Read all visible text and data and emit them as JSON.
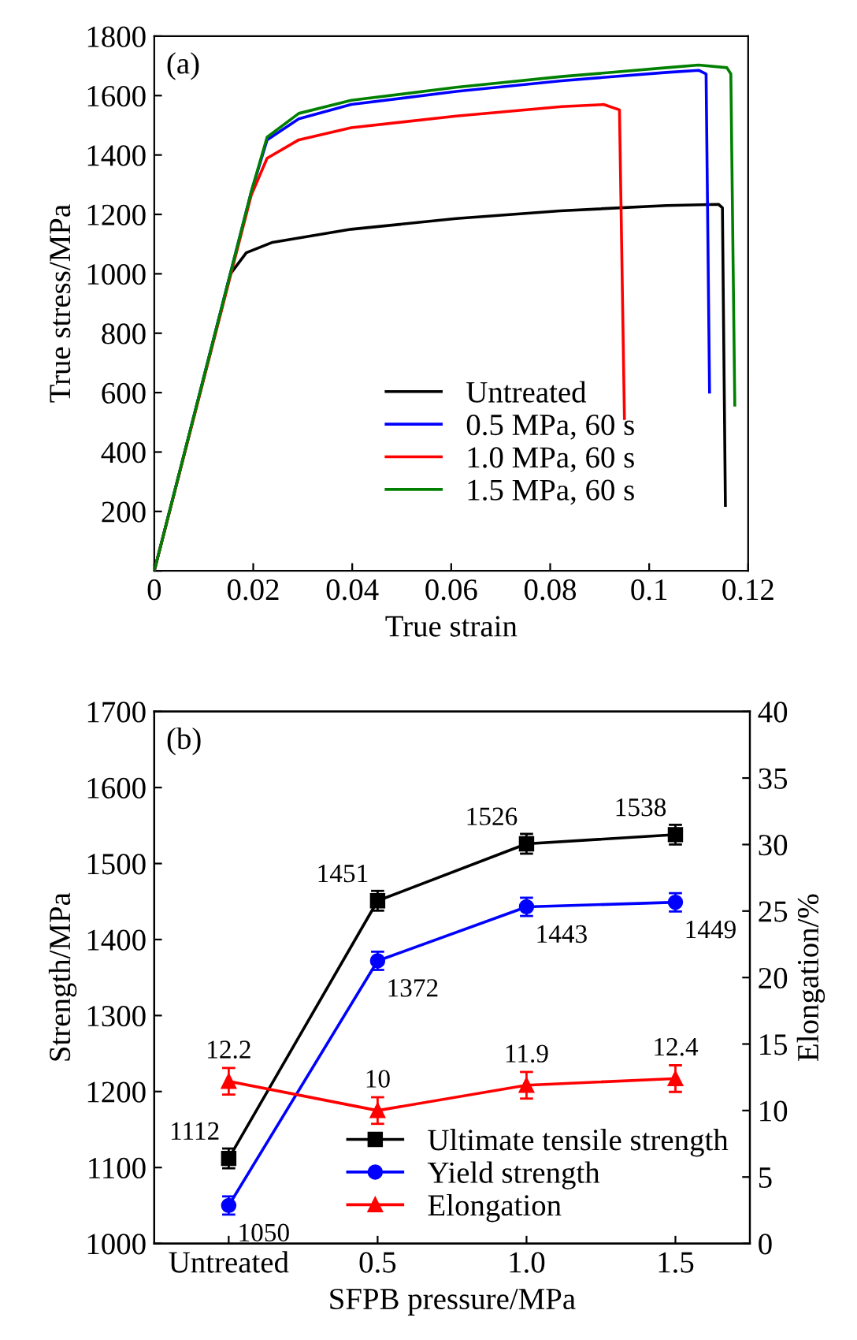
{
  "chart_data": [
    {
      "type": "line",
      "title": "(a)",
      "xlabel": "True strain",
      "ylabel": "True stress/MPa",
      "xlim": [
        0,
        0.12
      ],
      "ylim": [
        0,
        1800
      ],
      "xticks": [
        {
          "value": 0,
          "label": "0"
        },
        0.02,
        0.04,
        0.06,
        0.08,
        0.1,
        0.12
      ],
      "yticks": [
        {
          "value": 0,
          "label": null
        },
        200,
        400,
        600,
        800,
        1000,
        1200,
        1400,
        1600,
        1800
      ],
      "legend": "bottom",
      "grid": false,
      "marker": "none",
      "line_style": "solid",
      "series": [
        {
          "name": "Untreated",
          "color": "#000000",
          "x": [
            0,
            0.0154,
            0.0186,
            0.0239,
            0.0398,
            0.061,
            0.082,
            0.1035,
            0.114,
            0.1148,
            0.1154
          ],
          "values": [
            0,
            1000,
            1071,
            1106,
            1150,
            1186,
            1212,
            1230,
            1234,
            1222,
            220
          ]
        },
        {
          "name": "0.5 MPa, 60 s",
          "color": "#0000ff",
          "x": [
            0,
            0.0196,
            0.0228,
            0.0292,
            0.0398,
            0.061,
            0.0823,
            0.1035,
            0.11,
            0.1115,
            0.1122
          ],
          "values": [
            0,
            1276,
            1451,
            1522,
            1570,
            1614,
            1650,
            1678,
            1685,
            1673,
            602
          ]
        },
        {
          "name": "1.0 MPa, 60 s",
          "color": "#ff0000",
          "x": [
            0,
            0.0196,
            0.0228,
            0.0292,
            0.0398,
            0.061,
            0.0823,
            0.0908,
            0.094,
            0.095
          ],
          "values": [
            0,
            1265,
            1389,
            1451,
            1492,
            1531,
            1563,
            1570,
            1552,
            513
          ]
        },
        {
          "name": "1.5 MPa, 60 s",
          "color": "#008000",
          "x": [
            0,
            0.0196,
            0.0228,
            0.0292,
            0.0398,
            0.061,
            0.0823,
            0.1035,
            0.11,
            0.1157,
            0.1165,
            0.1173
          ],
          "values": [
            0,
            1276,
            1460,
            1540,
            1584,
            1628,
            1664,
            1694,
            1703,
            1694,
            1673,
            558
          ]
        }
      ]
    },
    {
      "type": "line",
      "title": "(b)",
      "xlabel": "SFPB pressure/MPa",
      "ylabel": "Strength/MPa",
      "y2label": "Elongation/%",
      "categories": [
        "Untreated",
        "0.5",
        "1.0",
        "1.5"
      ],
      "ylim": [
        1000,
        1700
      ],
      "yticks": [
        1000,
        1100,
        1200,
        1300,
        1400,
        1500,
        1600,
        1700
      ],
      "y2lim": [
        0,
        40
      ],
      "y2ticks": [
        0,
        5,
        10,
        15,
        20,
        25,
        30,
        35,
        40
      ],
      "legend": "bottom right",
      "grid": false,
      "data_labels": true,
      "line_style": "solid",
      "series": [
        {
          "name": "Ultimate tensile strength",
          "color": "#000000",
          "marker": "square",
          "values": [
            1112,
            1451,
            1526,
            1538
          ],
          "errors": [
            13,
            13,
            13,
            13
          ]
        },
        {
          "name": "Yield strength",
          "color": "#0000ff",
          "marker": "circle",
          "values": [
            1050,
            1372,
            1443,
            1449
          ],
          "errors": [
            12,
            12,
            12,
            12
          ]
        },
        {
          "name": "Elongation",
          "color": "#ff0000",
          "marker": "triangle",
          "axis": "y2",
          "values": [
            12.2,
            10,
            11.9,
            12.4
          ],
          "errors": [
            1,
            1,
            1,
            1
          ]
        }
      ]
    }
  ]
}
